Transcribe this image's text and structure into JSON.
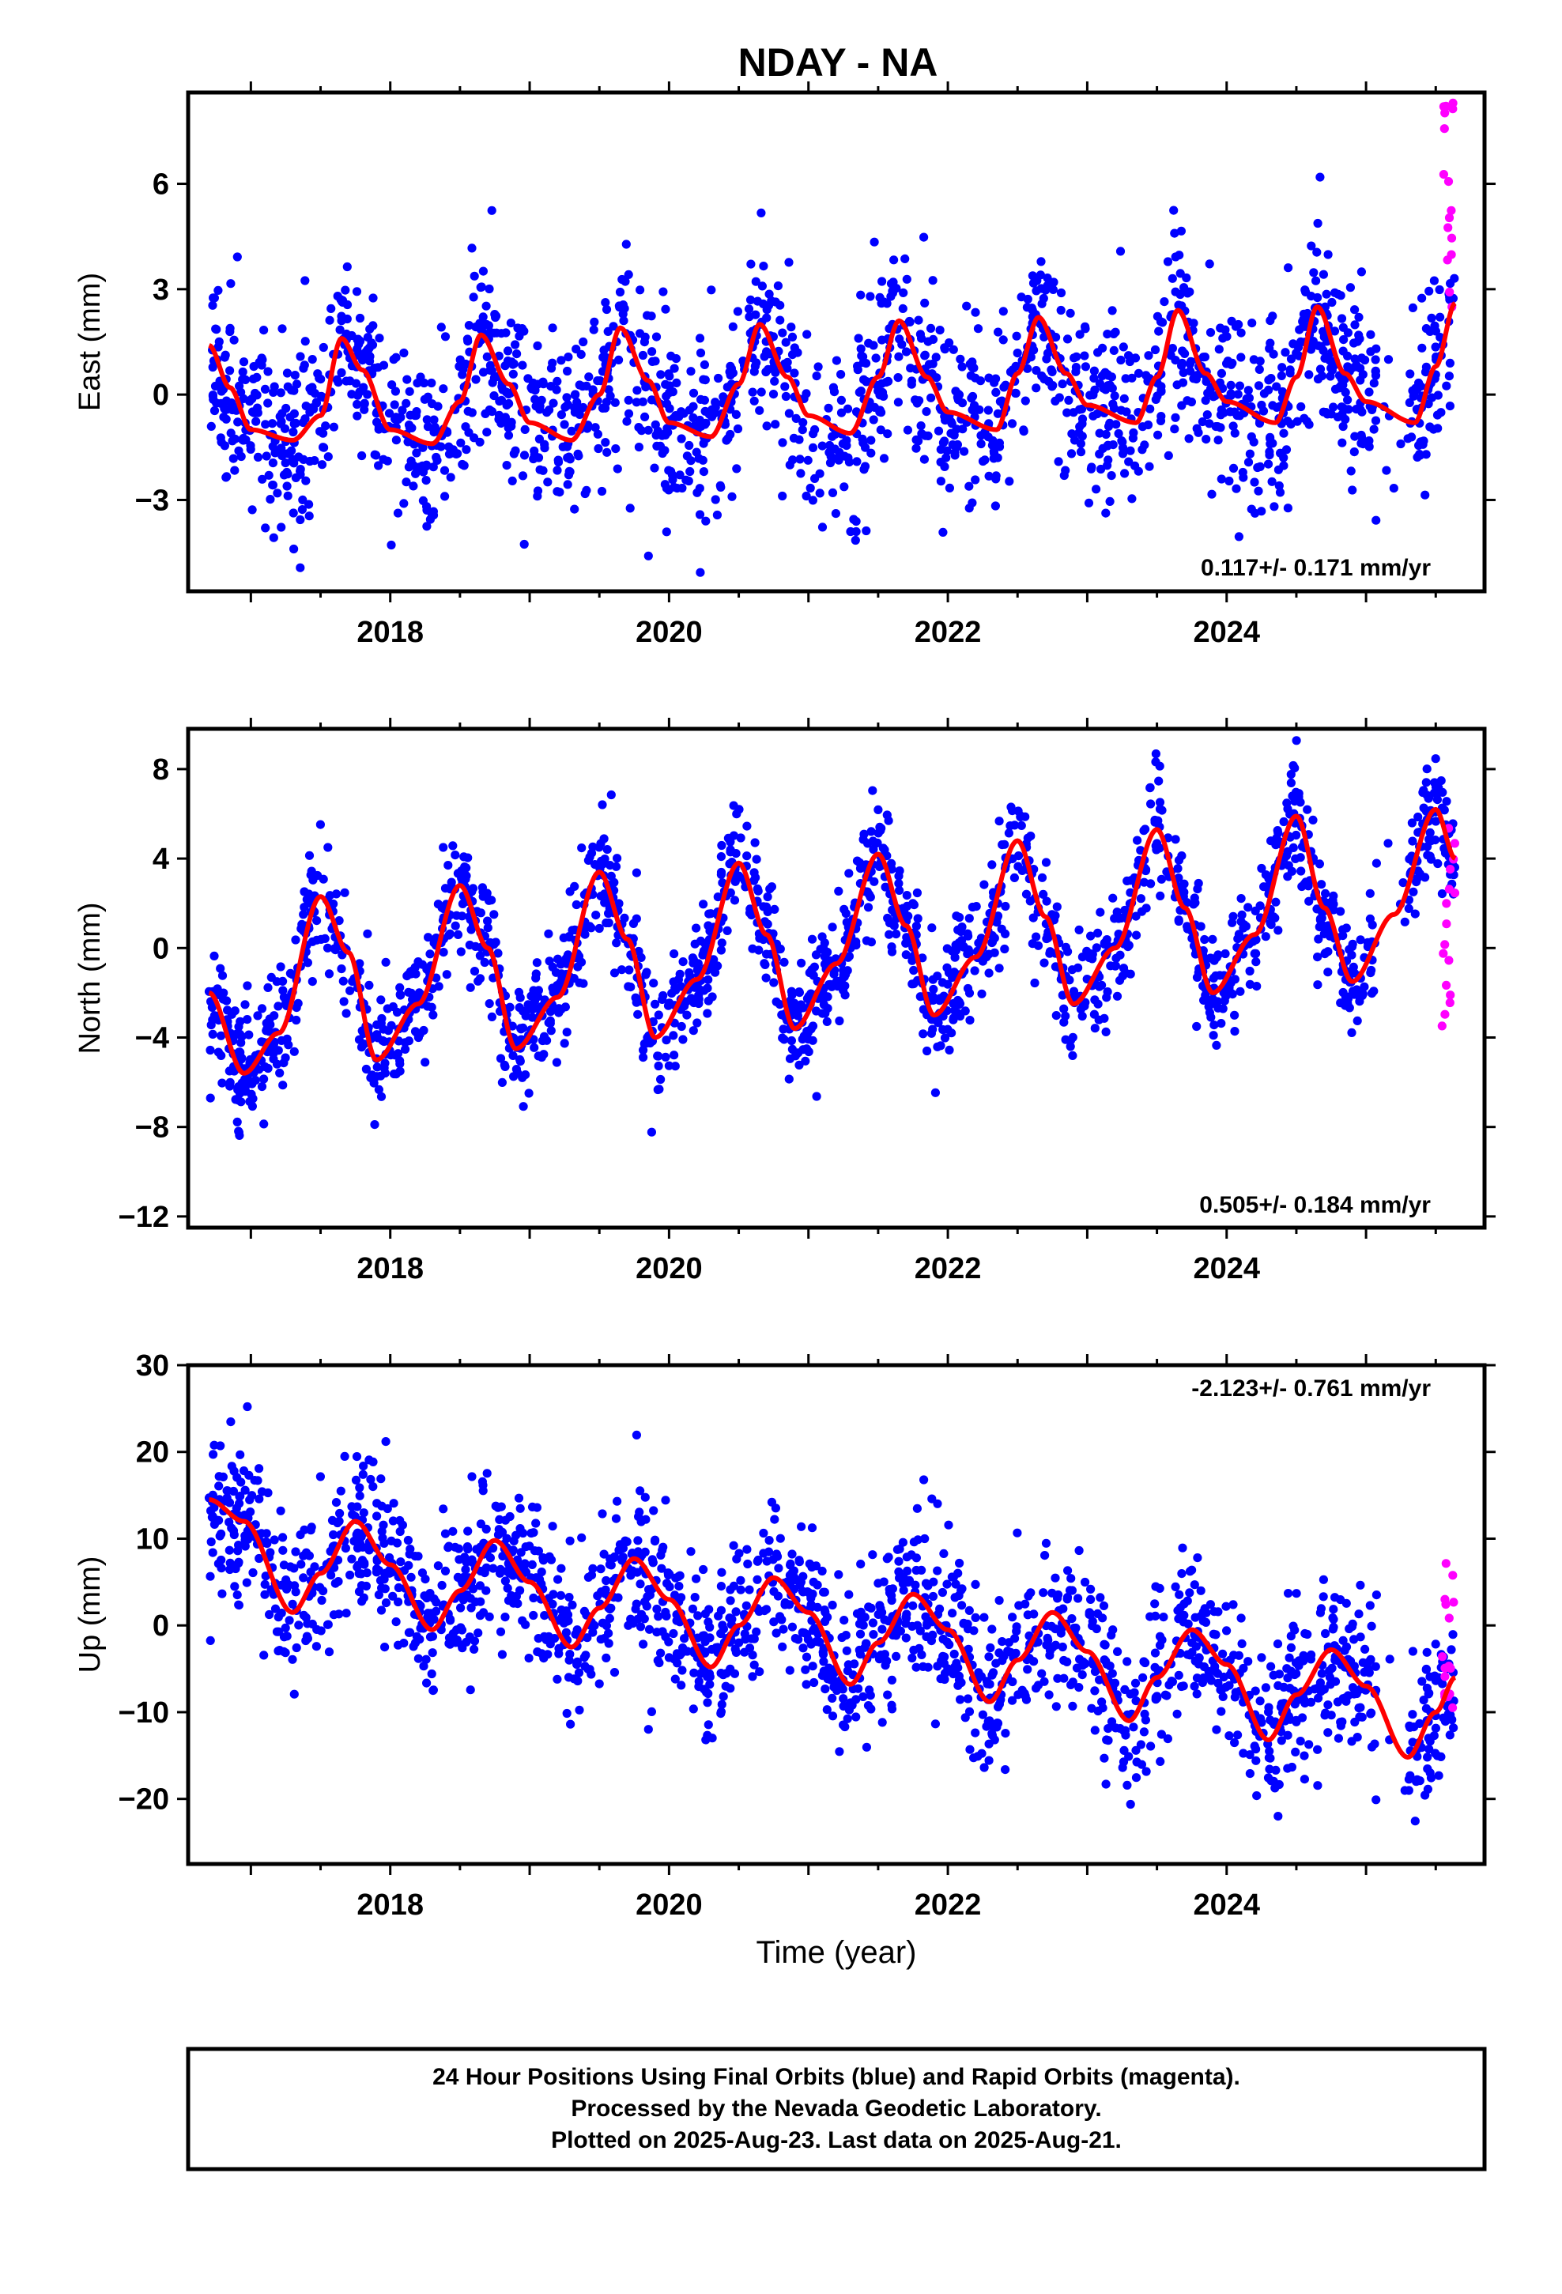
{
  "title": "NDAY - NA",
  "xlabel": "Time (year)",
  "caption": [
    "24 Hour Positions Using Final Orbits (blue) and Rapid Orbits (magenta).",
    "Processed by the Nevada Geodetic Laboratory.",
    "Plotted on 2025-Aug-23. Last data on 2025-Aug-21."
  ],
  "colors": {
    "final": "#0000ff",
    "rapid": "#ff00ff",
    "model": "#ff0000",
    "axis": "#000000"
  },
  "chart_data": [
    {
      "type": "scatter",
      "ylabel": "East (mm)",
      "rate_text": "0.117+/- 0.171 mm/yr",
      "xlim": [
        2016.55,
        2025.85
      ],
      "ylim": [
        -5.6,
        8.6
      ],
      "yticks": [
        -3,
        0,
        3,
        6
      ],
      "xticks": [
        2018,
        2020,
        2022,
        2024
      ],
      "rapid_x_range": [
        2025.54,
        2025.64
      ],
      "rapid_y_range": [
        1.8,
        8.4
      ],
      "series": [
        {
          "kind": "final_orbits",
          "x_range": [
            2016.7,
            2025.64
          ],
          "scatter_sd": 1.25,
          "seasonal_model": {
            "intercept": 0.1,
            "slope": 0.117,
            "ref_year": 2021,
            "annual_peak": 1.6,
            "peak_phase": 0.58,
            "knots": [
              [
                2016.7,
                1.4
              ],
              [
                2016.85,
                0.2
              ],
              [
                2017.0,
                -1.0
              ],
              [
                2017.3,
                -1.3
              ],
              [
                2017.5,
                -0.6
              ],
              [
                2017.65,
                1.6
              ],
              [
                2017.8,
                0.7
              ],
              [
                2018.0,
                -1.0
              ],
              [
                2018.3,
                -1.4
              ],
              [
                2018.5,
                -0.2
              ],
              [
                2018.65,
                1.7
              ],
              [
                2018.85,
                0.3
              ],
              [
                2019.0,
                -0.8
              ],
              [
                2019.3,
                -1.3
              ],
              [
                2019.5,
                0.0
              ],
              [
                2019.65,
                1.9
              ],
              [
                2019.85,
                0.4
              ],
              [
                2020.0,
                -0.8
              ],
              [
                2020.3,
                -1.2
              ],
              [
                2020.5,
                0.3
              ],
              [
                2020.65,
                2.0
              ],
              [
                2020.85,
                0.5
              ],
              [
                2021.0,
                -0.6
              ],
              [
                2021.3,
                -1.1
              ],
              [
                2021.5,
                0.5
              ],
              [
                2021.65,
                2.1
              ],
              [
                2021.85,
                0.5
              ],
              [
                2022.0,
                -0.5
              ],
              [
                2022.35,
                -1.0
              ],
              [
                2022.5,
                0.6
              ],
              [
                2022.65,
                2.2
              ],
              [
                2022.85,
                0.6
              ],
              [
                2023.0,
                -0.3
              ],
              [
                2023.35,
                -0.8
              ],
              [
                2023.5,
                0.5
              ],
              [
                2023.65,
                2.4
              ],
              [
                2023.85,
                0.6
              ],
              [
                2024.0,
                -0.2
              ],
              [
                2024.35,
                -0.8
              ],
              [
                2024.5,
                0.5
              ],
              [
                2024.65,
                2.5
              ],
              [
                2024.85,
                0.6
              ],
              [
                2025.0,
                -0.2
              ],
              [
                2025.35,
                -0.8
              ],
              [
                2025.5,
                0.8
              ],
              [
                2025.64,
                2.6
              ]
            ]
          }
        },
        {
          "kind": "rapid_orbits"
        }
      ]
    },
    {
      "type": "scatter",
      "ylabel": "North (mm)",
      "rate_text": "0.505+/- 0.184 mm/yr",
      "xlim": [
        2016.55,
        2025.85
      ],
      "ylim": [
        -12.5,
        9.8
      ],
      "yticks": [
        -12,
        -8,
        -4,
        0,
        4,
        8
      ],
      "xticks": [
        2018,
        2020,
        2022,
        2024
      ],
      "rapid_x_range": [
        2025.54,
        2025.64
      ],
      "rapid_y_range": [
        -4.3,
        5.6
      ],
      "series": [
        {
          "kind": "final_orbits",
          "x_range": [
            2016.7,
            2025.64
          ],
          "scatter_sd": 1.3,
          "seasonal_model": {
            "intercept": 0.0,
            "slope": 0.505,
            "ref_year": 2021,
            "annual_peak": 2.3,
            "peak_phase": 0.52,
            "knots": [
              [
                2016.7,
                -2.0
              ],
              [
                2016.95,
                -5.6
              ],
              [
                2017.2,
                -3.8
              ],
              [
                2017.5,
                2.3
              ],
              [
                2017.7,
                -0.2
              ],
              [
                2017.9,
                -5.0
              ],
              [
                2018.2,
                -2.5
              ],
              [
                2018.5,
                2.8
              ],
              [
                2018.7,
                0.0
              ],
              [
                2018.9,
                -4.5
              ],
              [
                2019.2,
                -2.2
              ],
              [
                2019.5,
                3.4
              ],
              [
                2019.7,
                0.4
              ],
              [
                2019.9,
                -4.0
              ],
              [
                2020.2,
                -1.4
              ],
              [
                2020.5,
                3.8
              ],
              [
                2020.7,
                0.6
              ],
              [
                2020.9,
                -3.6
              ],
              [
                2021.2,
                -0.7
              ],
              [
                2021.5,
                4.2
              ],
              [
                2021.7,
                1.0
              ],
              [
                2021.9,
                -3.0
              ],
              [
                2022.2,
                -0.4
              ],
              [
                2022.5,
                4.8
              ],
              [
                2022.7,
                1.4
              ],
              [
                2022.9,
                -2.5
              ],
              [
                2023.2,
                0.0
              ],
              [
                2023.5,
                5.3
              ],
              [
                2023.7,
                1.8
              ],
              [
                2023.9,
                -2.0
              ],
              [
                2024.2,
                0.6
              ],
              [
                2024.5,
                5.9
              ],
              [
                2024.7,
                1.8
              ],
              [
                2024.9,
                -1.5
              ],
              [
                2025.2,
                1.5
              ],
              [
                2025.5,
                6.2
              ],
              [
                2025.64,
                4.0
              ]
            ]
          }
        },
        {
          "kind": "rapid_orbits"
        }
      ]
    },
    {
      "type": "scatter",
      "ylabel": "Up (mm)",
      "rate_text": "-2.123+/- 0.761 mm/yr",
      "xlim": [
        2016.55,
        2025.85
      ],
      "ylim": [
        -27.5,
        30
      ],
      "yticks": [
        -20,
        -10,
        0,
        10,
        20,
        30
      ],
      "xticks": [
        2018,
        2020,
        2022,
        2024
      ],
      "rapid_x_range": [
        2025.54,
        2025.64
      ],
      "rapid_y_range": [
        -12,
        9.5
      ],
      "series": [
        {
          "kind": "final_orbits",
          "x_range": [
            2016.7,
            2025.64
          ],
          "scatter_sd": 4.5,
          "seasonal_model": {
            "intercept": 0.0,
            "slope": -2.123,
            "ref_year": 2021,
            "annual_peak": 5.5,
            "peak_phase": 0.75,
            "knots": [
              [
                2016.7,
                14.5
              ],
              [
                2016.95,
                12.0
              ],
              [
                2017.3,
                1.5
              ],
              [
                2017.5,
                6.0
              ],
              [
                2017.75,
                12.0
              ],
              [
                2018.0,
                7.0
              ],
              [
                2018.3,
                -0.5
              ],
              [
                2018.5,
                4.0
              ],
              [
                2018.75,
                9.8
              ],
              [
                2019.0,
                5.0
              ],
              [
                2019.3,
                -2.5
              ],
              [
                2019.5,
                2.0
              ],
              [
                2019.75,
                7.7
              ],
              [
                2020.0,
                3.0
              ],
              [
                2020.3,
                -4.8
              ],
              [
                2020.5,
                0.0
              ],
              [
                2020.75,
                5.5
              ],
              [
                2021.0,
                1.5
              ],
              [
                2021.3,
                -6.8
              ],
              [
                2021.5,
                -2.0
              ],
              [
                2021.75,
                3.6
              ],
              [
                2022.0,
                -0.5
              ],
              [
                2022.3,
                -8.8
              ],
              [
                2022.5,
                -4.0
              ],
              [
                2022.75,
                1.5
              ],
              [
                2023.0,
                -3.0
              ],
              [
                2023.3,
                -11.0
              ],
              [
                2023.5,
                -6.0
              ],
              [
                2023.75,
                -0.5
              ],
              [
                2024.0,
                -4.5
              ],
              [
                2024.3,
                -13.2
              ],
              [
                2024.5,
                -8.0
              ],
              [
                2024.75,
                -2.8
              ],
              [
                2025.0,
                -7.0
              ],
              [
                2025.3,
                -15.2
              ],
              [
                2025.5,
                -10.0
              ],
              [
                2025.64,
                -6.0
              ]
            ]
          }
        },
        {
          "kind": "rapid_orbits"
        }
      ]
    }
  ]
}
